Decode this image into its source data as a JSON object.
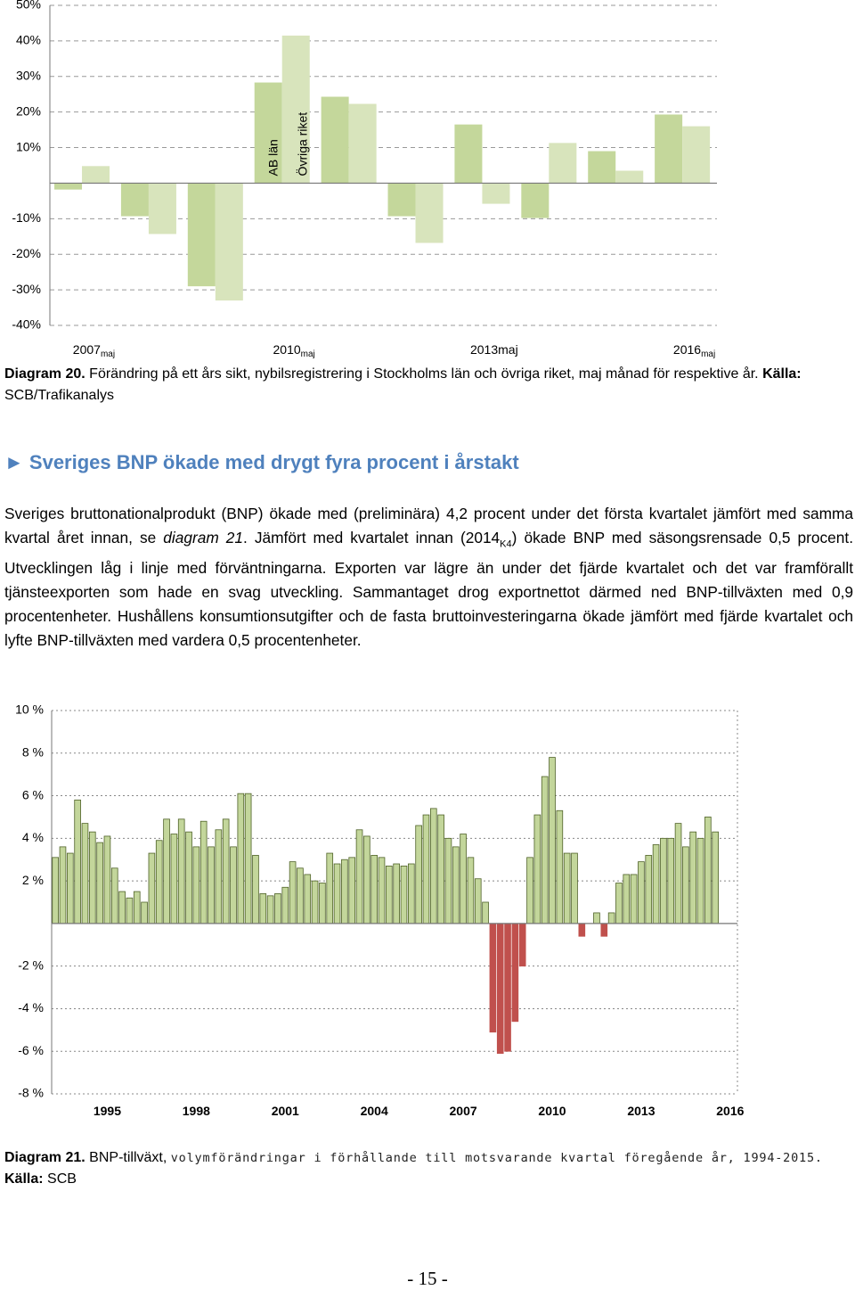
{
  "chart_data": [
    {
      "type": "bar",
      "categories": [
        "2007",
        null,
        null,
        "2010",
        null,
        null,
        "2013maj",
        null,
        null,
        "2016"
      ],
      "category_subscripts": [
        "maj",
        null,
        null,
        "maj",
        null,
        null,
        null,
        null,
        null,
        "maj"
      ],
      "series": [
        {
          "name": "AB län",
          "color": "#c4d79b",
          "values": [
            -1.8,
            -9.3,
            -29,
            28.3,
            24.3,
            -9.3,
            16.5,
            -9.8,
            9,
            19.3
          ]
        },
        {
          "name": "Övriga riket",
          "color": "#d8e4bc",
          "values": [
            4.8,
            -14.3,
            -33,
            41.5,
            22.3,
            -16.8,
            -5.8,
            11.3,
            3.5,
            16
          ]
        }
      ],
      "ylim": [
        -40,
        50
      ],
      "yticks": [
        {
          "value": 50,
          "label": "50%"
        },
        {
          "value": 40,
          "label": "40%"
        },
        {
          "value": 30,
          "label": "30%"
        },
        {
          "value": 20,
          "label": "20%"
        },
        {
          "value": 10,
          "label": "10%"
        },
        {
          "value": -10,
          "label": "-10%"
        },
        {
          "value": -20,
          "label": "-20%"
        },
        {
          "value": -30,
          "label": "-30%"
        },
        {
          "value": -40,
          "label": "-40%"
        }
      ],
      "grid": true
    },
    {
      "type": "bar",
      "categories": [
        null,
        null,
        null,
        null,
        null,
        null,
        null,
        "1995",
        null,
        null,
        null,
        null,
        null,
        null,
        null,
        null,
        null,
        null,
        null,
        "1998",
        null,
        null,
        null,
        null,
        null,
        null,
        null,
        null,
        null,
        null,
        null,
        "2001",
        null,
        null,
        null,
        null,
        null,
        null,
        null,
        null,
        null,
        null,
        null,
        "2004",
        null,
        null,
        null,
        null,
        null,
        null,
        null,
        null,
        null,
        null,
        null,
        "2007",
        null,
        null,
        null,
        null,
        null,
        null,
        null,
        null,
        null,
        null,
        null,
        "2010",
        null,
        null,
        null,
        null,
        null,
        null,
        null,
        null,
        null,
        null,
        null,
        "2013",
        null,
        null,
        null,
        null,
        null,
        null,
        null,
        null,
        null,
        null,
        null,
        "2016"
      ],
      "values": [
        3.1,
        3.6,
        3.3,
        5.8,
        4.7,
        4.3,
        3.8,
        4.1,
        2.6,
        1.5,
        1.2,
        1.5,
        1.0,
        3.3,
        3.9,
        4.9,
        4.2,
        4.9,
        4.3,
        3.6,
        4.8,
        3.6,
        4.4,
        4.9,
        3.6,
        6.1,
        6.1,
        3.2,
        1.4,
        1.3,
        1.4,
        1.7,
        2.9,
        2.6,
        2.3,
        2.0,
        1.9,
        3.3,
        2.8,
        3.0,
        3.1,
        4.4,
        4.1,
        3.2,
        3.1,
        2.7,
        2.8,
        2.7,
        2.8,
        4.6,
        5.1,
        5.4,
        5.1,
        4.0,
        3.6,
        4.2,
        3.1,
        2.1,
        1.0,
        -5.1,
        -6.1,
        -6.0,
        -4.6,
        -2.0,
        3.1,
        5.1,
        6.9,
        7.8,
        5.3,
        3.3,
        3.3,
        -0.6,
        0,
        0.5,
        -0.6,
        0.5,
        1.9,
        2.3,
        2.3,
        2.9,
        3.2,
        3.7,
        4.0,
        4.0,
        4.7,
        3.6,
        4.3,
        4.0,
        5.0,
        4.3,
        null,
        null
      ],
      "color": "#c3d69b",
      "negative_color": "#c0504d",
      "edge_color": "#4f6228",
      "ylim": [
        -8,
        10
      ],
      "yticks": [
        {
          "value": 10,
          "label": "10 %"
        },
        {
          "value": 8,
          "label": "8 %"
        },
        {
          "value": 6,
          "label": "6 %"
        },
        {
          "value": 4,
          "label": "4 %"
        },
        {
          "value": 2,
          "label": "2 %"
        },
        {
          "value": -2,
          "label": "-2 %"
        },
        {
          "value": -4,
          "label": "-4 %"
        },
        {
          "value": -6,
          "label": "-6 %"
        },
        {
          "value": -8,
          "label": "-8 %"
        }
      ],
      "grid": true
    }
  ],
  "diagram20_caption": {
    "label": "Diagram 20.",
    "text": "Förändring på ett års sikt, nybilsregistrering i Stockholms län och övriga riket, maj månad för respektive år.",
    "source_label": "Källa:",
    "source": "SCB/Trafikanalys"
  },
  "section": {
    "marker": "►",
    "heading": "Sveriges BNP ökade med drygt fyra procent i årstakt",
    "paragraph": [
      "Sveriges bruttonationalprodukt (BNP) ökade med (preliminära) 4,2 procent under det första kvartalet jämfört med samma kvartal året innan, se ",
      "diagram 21",
      ". Jämfört med kvartalet innan (2014",
      "K4",
      ") ökade BNP med säsongsrensade 0,5 procent. Utvecklingen låg i linje med förväntningarna. Exporten var lägre än under det fjärde kvartalet och det var framförallt tjänsteexporten som hade en svag utveckling. Sammantaget drog exportnettot därmed ned BNP-tillväxten med 0,9 procentenheter. Hushållens konsumtionsutgifter och de fasta bruttoinvesteringarna ökade jämfört med fjärde kvartalet och lyfte BNP-tillväxten med vardera 0,5 procentenheter."
    ]
  },
  "diagram21_caption": {
    "label": "Diagram 21.",
    "text": "BNP-tillväxt,",
    "detail": "volymförändringar i förhållande till motsvarande kvartal föregående år, 1994-2015.",
    "source_label": "Källa:",
    "source": "SCB"
  },
  "page_number": "- 15 -"
}
